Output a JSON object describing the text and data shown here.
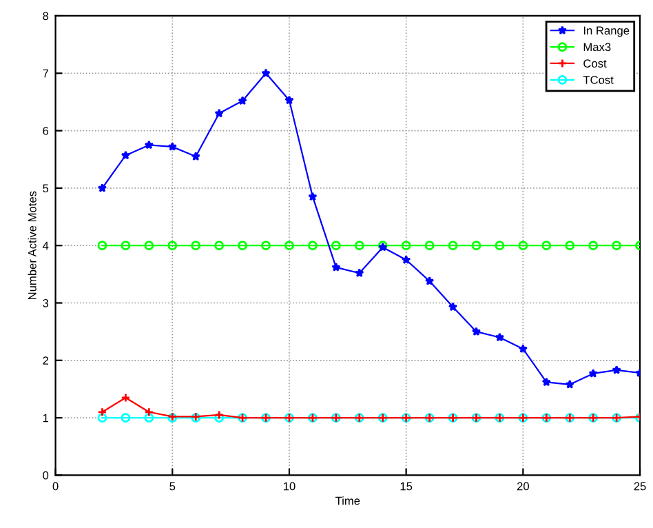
{
  "chart_data": {
    "type": "line",
    "xlabel": "Time",
    "ylabel": "Number Active Motes",
    "x": [
      2,
      3,
      4,
      5,
      6,
      7,
      8,
      9,
      10,
      11,
      12,
      13,
      14,
      15,
      16,
      17,
      18,
      19,
      20,
      21,
      22,
      23,
      24,
      25
    ],
    "series": [
      {
        "name": "In Range",
        "color": "#0000ff",
        "marker": "star",
        "values": [
          5.0,
          5.57,
          5.75,
          5.72,
          5.55,
          6.3,
          6.52,
          7.0,
          6.53,
          4.85,
          3.62,
          3.52,
          3.97,
          3.75,
          3.38,
          2.93,
          2.5,
          2.4,
          2.2,
          1.62,
          1.58,
          1.77,
          1.83,
          1.78
        ]
      },
      {
        "name": "Max3",
        "color": "#00ff00",
        "marker": "circle",
        "values": [
          4,
          4,
          4,
          4,
          4,
          4,
          4,
          4,
          4,
          4,
          4,
          4,
          4,
          4,
          4,
          4,
          4,
          4,
          4,
          4,
          4,
          4,
          4,
          4
        ]
      },
      {
        "name": "Cost",
        "color": "#ff0000",
        "marker": "cross",
        "values": [
          1.1,
          1.35,
          1.1,
          1.02,
          1.02,
          1.05,
          1,
          1,
          1,
          1,
          1,
          1,
          1,
          1,
          1,
          1,
          1,
          1,
          1,
          1,
          1,
          1,
          1,
          1.02
        ]
      },
      {
        "name": "TCost",
        "color": "#00ffff",
        "marker": "circle",
        "values": [
          1,
          1,
          1,
          1,
          1,
          1,
          1,
          1,
          1,
          1,
          1,
          1,
          1,
          1,
          1,
          1,
          1,
          1,
          1,
          1,
          1,
          1,
          1,
          1
        ]
      }
    ],
    "xlim": [
      0,
      25
    ],
    "xticks": [
      0,
      5,
      10,
      15,
      20,
      25
    ],
    "ylim": [
      0,
      8
    ],
    "yticks": [
      0,
      1,
      2,
      3,
      4,
      5,
      6,
      7,
      8
    ],
    "grid": true,
    "legend": "top right",
    "line_style": "solid"
  }
}
